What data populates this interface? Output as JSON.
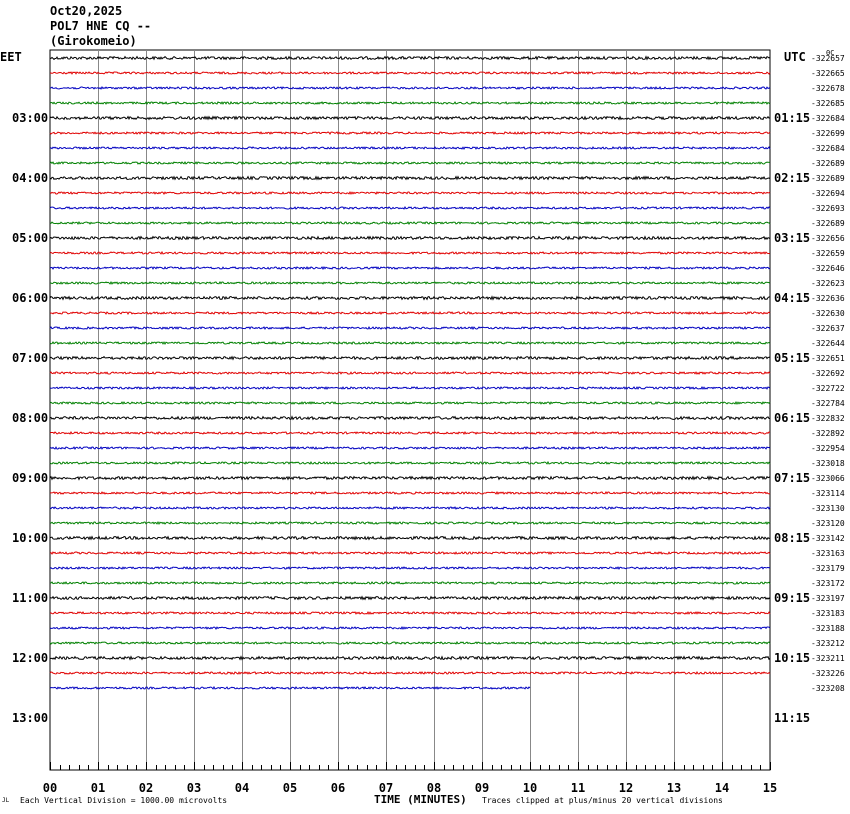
{
  "header": {
    "date": "Oct20,2025",
    "station": "POL7 HNE CQ --",
    "location": "(Girokomeio)"
  },
  "axes": {
    "left_timezone": "EET",
    "right_timezone": "UTC",
    "top_right_mark": "0C"
  },
  "footer": {
    "corner_mark": "JL",
    "scale_note": "Each Vertical Division = 1000.00 microvolts",
    "xlabel": "TIME (MINUTES)",
    "clip_note": "Traces clipped at plus/minus 20 vertical divisions"
  },
  "chart_data": {
    "type": "line",
    "xlabel": "TIME (MINUTES)",
    "xlim": [
      0,
      15
    ],
    "x_ticks": [
      "00",
      "01",
      "02",
      "03",
      "04",
      "05",
      "06",
      "07",
      "08",
      "09",
      "10",
      "11",
      "12",
      "13",
      "14",
      "15"
    ],
    "rows_per_hour": 4,
    "minutes_per_row": 15,
    "trace_colors": [
      "#000000",
      "#e00000",
      "#0000c0",
      "#008000"
    ],
    "left_hour_labels": [
      "03:00",
      "04:00",
      "05:00",
      "06:00",
      "07:00",
      "08:00",
      "09:00",
      "10:00",
      "11:00",
      "12:00",
      "13:00"
    ],
    "right_hour_labels": [
      "01:15",
      "02:15",
      "03:15",
      "04:15",
      "05:15",
      "06:15",
      "07:15",
      "08:15",
      "09:15",
      "10:15",
      "11:15"
    ],
    "row_offsets": [
      "-322657",
      "-322665",
      "-322678",
      "-322685",
      "-322684",
      "-322699",
      "-322684",
      "-322689",
      "-322689",
      "-322694",
      "-322693",
      "-322689",
      "-322656",
      "-322659",
      "-322646",
      "-322623",
      "-322636",
      "-322630",
      "-322637",
      "-322644",
      "-322651",
      "-322692",
      "-322722",
      "-322784",
      "-322832",
      "-322892",
      "-322954",
      "-323018",
      "-323066",
      "-323114",
      "-323130",
      "-323120",
      "-323142",
      "-323163",
      "-323179",
      "-323172",
      "-323197",
      "-323183",
      "-323188",
      "-323212",
      "-323211",
      "-323226",
      "-323208"
    ],
    "last_row_end_minute": 10,
    "clip_divisions": 20,
    "microvolts_per_division": 1000.0
  }
}
